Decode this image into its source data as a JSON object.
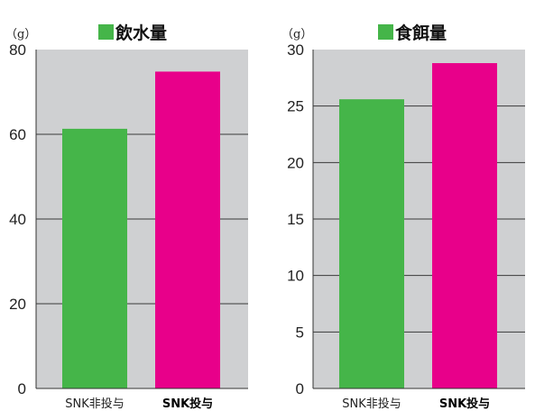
{
  "chart_data": [
    {
      "type": "bar",
      "unit_label": "（g）",
      "legend": "飲水量",
      "categories": [
        "SNK非投与",
        "SNK投与"
      ],
      "values": [
        61.3,
        74.8
      ],
      "bar_colors": [
        "#45b549",
        "#e8008a"
      ],
      "legend_color": "#45b549",
      "ylim": [
        0,
        80
      ],
      "yticks": [
        0,
        20,
        40,
        60,
        80
      ],
      "grid": true,
      "background": "#cfd0d2"
    },
    {
      "type": "bar",
      "unit_label": "（g）",
      "legend": "食餌量",
      "categories": [
        "SNK非投与",
        "SNK投与"
      ],
      "values": [
        25.6,
        28.8
      ],
      "bar_colors": [
        "#45b549",
        "#e8008a"
      ],
      "legend_color": "#45b549",
      "ylim": [
        0,
        30
      ],
      "yticks": [
        0,
        5,
        10,
        15,
        20,
        25,
        30
      ],
      "grid": true,
      "background": "#cfd0d2"
    }
  ]
}
